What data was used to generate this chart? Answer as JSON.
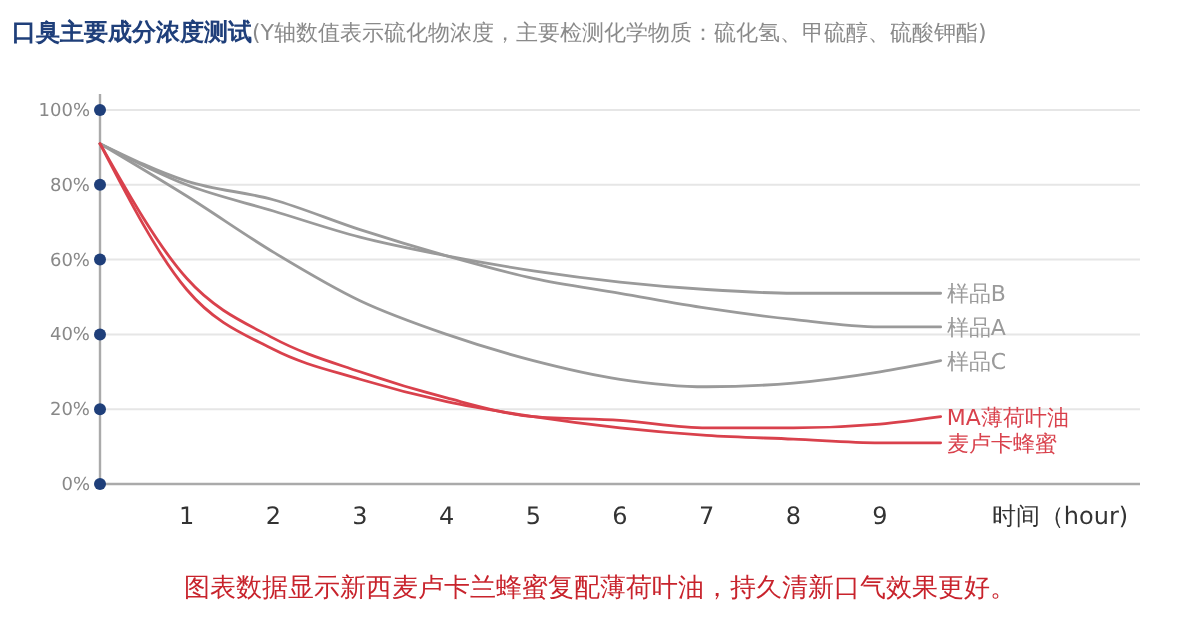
{
  "chart_data": {
    "type": "line",
    "title": "口臭主要成分浓度测试",
    "subtitle": "(Y轴数值表示硫化物浓度，主要检测化学物质：硫化氢、甲硫醇、硫酸钾酯)",
    "xlabel": "时间（hour)",
    "annotations": [
      "图表数据显示新西麦卢卡兰蜂蜜复配薄荷叶油，持久清新口气效果更好。"
    ],
    "x": [
      0,
      1,
      2,
      3,
      4,
      5,
      6,
      7,
      8,
      9,
      9.7
    ],
    "series": [
      {
        "name": "样品B",
        "color": "#9a9a9a",
        "values": [
          91,
          80,
          73,
          66,
          61,
          57,
          54,
          52,
          51,
          51,
          51
        ]
      },
      {
        "name": "样品A",
        "color": "#9a9a9a",
        "values": [
          91,
          81,
          76,
          68,
          61,
          55,
          51,
          47,
          44,
          42,
          42
        ]
      },
      {
        "name": "样品C",
        "color": "#9a9a9a",
        "values": [
          91,
          77,
          62,
          49,
          40,
          33,
          28,
          26,
          27,
          30,
          33
        ]
      },
      {
        "name": "MA薄荷叶油",
        "color": "#d9414c",
        "values": [
          91,
          55,
          39,
          30,
          23,
          18,
          17,
          15,
          15,
          16,
          18
        ]
      },
      {
        "name": "麦卢卡蜂蜜",
        "color": "#d9414c",
        "values": [
          91,
          52,
          36,
          28,
          22,
          18,
          15,
          13,
          12,
          11,
          11
        ]
      }
    ],
    "xlim": [
      0,
      12
    ],
    "xticks": [
      1,
      2,
      3,
      4,
      5,
      6,
      7,
      8,
      9
    ],
    "ylim": [
      0,
      100
    ],
    "yticks": [
      {
        "value": 0,
        "label": "0%"
      },
      {
        "value": 20,
        "label": "20%"
      },
      {
        "value": 40,
        "label": "40%"
      },
      {
        "value": 60,
        "label": "60%"
      },
      {
        "value": 80,
        "label": "80%"
      },
      {
        "value": 100,
        "label": "100%"
      }
    ],
    "grid": "y",
    "legend": "right",
    "marker": "none",
    "line_style": "solid"
  }
}
